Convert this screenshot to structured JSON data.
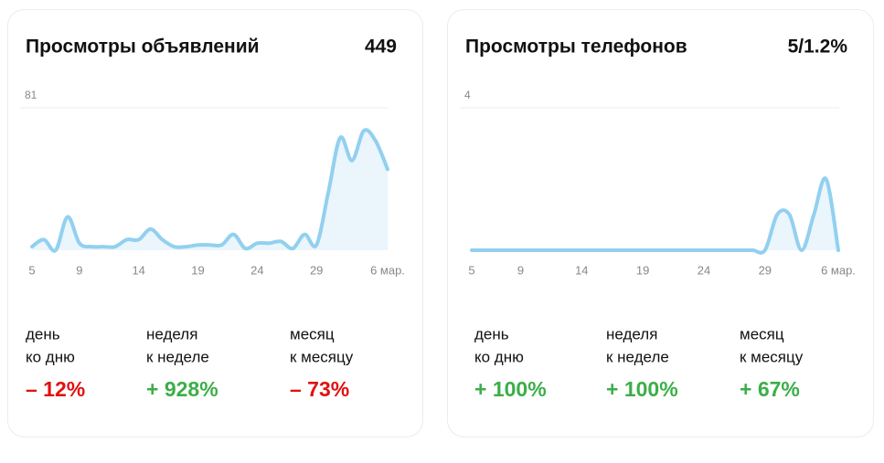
{
  "chart_data": [
    {
      "type": "area",
      "title": "Просмотры объявлений",
      "total": 449,
      "categories": [
        "5",
        null,
        null,
        null,
        "9",
        null,
        null,
        null,
        null,
        "14",
        null,
        null,
        null,
        null,
        "19",
        null,
        null,
        null,
        null,
        "24",
        null,
        null,
        null,
        null,
        "29",
        null,
        null,
        null,
        null,
        null,
        "6 мар."
      ],
      "values": [
        2,
        6,
        0,
        19,
        4,
        2,
        2,
        2,
        6,
        6,
        12,
        6,
        2,
        2,
        3,
        3,
        3,
        9,
        1,
        4,
        4,
        5,
        1,
        9,
        3,
        33,
        64,
        51,
        68,
        62,
        46
      ],
      "ylim": [
        0,
        81
      ],
      "yticks": [
        81
      ],
      "grid": true,
      "color": "#92d0ef",
      "fill": "#eaf5fc",
      "stats": [
        {
          "label": [
            "день",
            "ко дню"
          ],
          "value": "– 12%",
          "color": "#e0110f"
        },
        {
          "label": [
            "неделя",
            "к неделе"
          ],
          "value": "+ 928%",
          "color": "#3cae48"
        },
        {
          "label": [
            "месяц",
            "к месяцу"
          ],
          "value": "– 73%",
          "color": "#e0110f"
        }
      ]
    },
    {
      "type": "area",
      "title": "Просмотры телефонов",
      "total": "5/1.2%",
      "categories": [
        "5",
        null,
        null,
        null,
        "9",
        null,
        null,
        null,
        null,
        "14",
        null,
        null,
        null,
        null,
        "19",
        null,
        null,
        null,
        null,
        "24",
        null,
        null,
        null,
        null,
        "29",
        null,
        null,
        null,
        null,
        null,
        "6 мар."
      ],
      "values": [
        0,
        0,
        0,
        0,
        0,
        0,
        0,
        0,
        0,
        0,
        0,
        0,
        0,
        0,
        0,
        0,
        0,
        0,
        0,
        0,
        0,
        0,
        0,
        0,
        0,
        1,
        1,
        0,
        1,
        2,
        0
      ],
      "ylim": [
        0,
        4
      ],
      "yticks": [
        4
      ],
      "grid": true,
      "color": "#92d0ef",
      "fill": "#eaf5fc",
      "stats": [
        {
          "label": [
            "день",
            "ко дню"
          ],
          "value": "+ 100%",
          "color": "#3cae48"
        },
        {
          "label": [
            "неделя",
            "к неделе"
          ],
          "value": "+ 100%",
          "color": "#3cae48"
        },
        {
          "label": [
            "месяц",
            "к месяцу"
          ],
          "value": "+ 67%",
          "color": "#3cae48"
        }
      ]
    }
  ]
}
